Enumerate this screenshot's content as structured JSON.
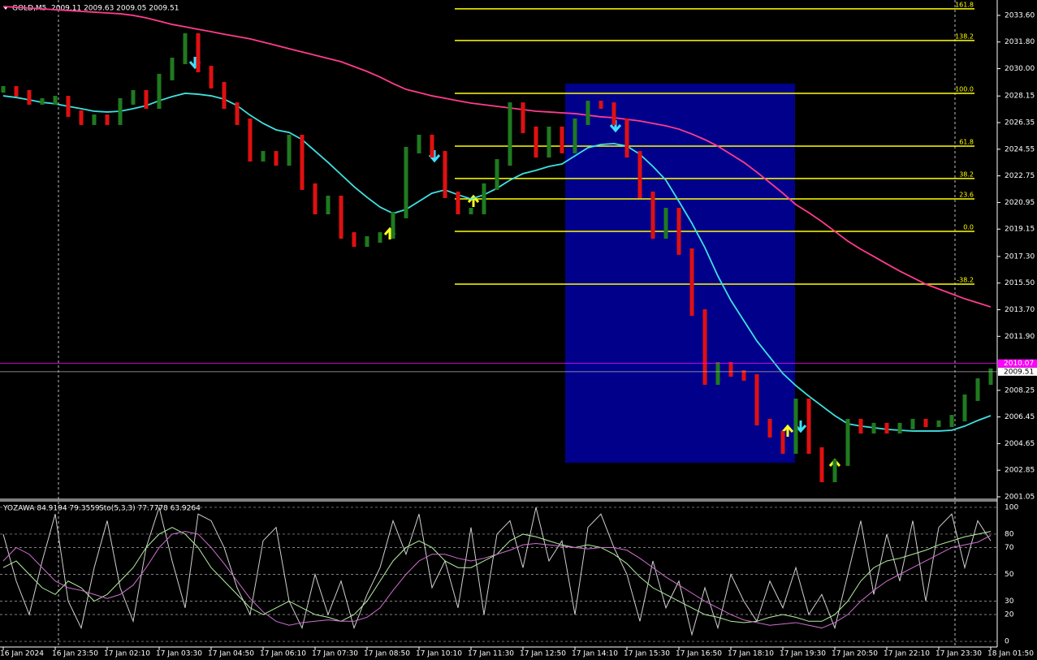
{
  "chart_data": [
    {
      "type": "price-bars",
      "title": "GOLD,M5",
      "subtitle": "2009.11 2009.63 2009.05 2009.51",
      "categories": [
        "16 Jan 2024",
        null,
        null,
        null,
        "16 Jan 23:50",
        null,
        null,
        null,
        "17 Jan 02:10",
        null,
        null,
        null,
        "17 Jan 03:30",
        null,
        null,
        null,
        "17 Jan 04:50",
        null,
        null,
        null,
        "17 Jan 06:10",
        null,
        null,
        null,
        "17 Jan 07:30",
        null,
        null,
        null,
        "17 Jan 08:50",
        null,
        null,
        null,
        "17 Jan 10:10",
        null,
        null,
        null,
        "17 Jan 11:30",
        null,
        null,
        null,
        "17 Jan 12:50",
        null,
        null,
        null,
        "17 Jan 14:10",
        null,
        null,
        null,
        "17 Jan 15:30",
        null,
        null,
        null,
        "17 Jan 16:50",
        null,
        null,
        null,
        "17 Jan 18:10",
        null,
        null,
        null,
        "17 Jan 19:30",
        null,
        null,
        null,
        "17 Jan 20:50",
        null,
        null,
        null,
        "17 Jan 22:10",
        null,
        null,
        null,
        "17 Jan 23:30",
        null,
        null,
        null,
        "18 Jan 01:50"
      ],
      "values": [
        2028.6,
        2028.33,
        2027.78,
        2027.78,
        2027.94,
        2026.96,
        2026.41,
        2026.68,
        2026.41,
        2027.78,
        2028.33,
        2027.5,
        2029.43,
        2030.52,
        2032.17,
        2029.97,
        2028.88,
        2027.5,
        2026.41,
        2023.94,
        2024.21,
        2023.66,
        2025.31,
        2022.02,
        2020.37,
        2021.19,
        2018.72,
        2018.17,
        2018.45,
        2018.72,
        2020.1,
        2024.49,
        2025.31,
        2024.21,
        2021.47,
        2020.37,
        2020.37,
        2022.02,
        2023.66,
        2027.5,
        2025.86,
        2024.21,
        2025.86,
        2024.49,
        2026.41,
        2027.61,
        2027.5,
        2026.41,
        2024.21,
        2021.47,
        2018.72,
        2020.37,
        2017.63,
        2013.51,
        2008.84,
        2009.94,
        2009.39,
        2009.12,
        2006.1,
        2005.28,
        2004.18,
        2007.47,
        2004.18,
        2002.26,
        2003.36,
        2006.1,
        2005.55,
        2005.83,
        2005.55,
        2005.83,
        2006.1,
        2005.99,
        2005.99,
        2006.37,
        2007.75,
        2008.84,
        2009.51
      ],
      "up_color": "#1f7a1f",
      "down_color": "#e01010",
      "overlays": [
        {
          "color": "#40e0e0",
          "values": [
            2028.16,
            2028.05,
            2027.89,
            2027.72,
            2027.62,
            2027.45,
            2027.29,
            2027.12,
            2027.07,
            2027.12,
            2027.29,
            2027.5,
            2027.83,
            2028.11,
            2028.33,
            2028.27,
            2028.16,
            2027.94,
            2027.5,
            2026.85,
            2026.3,
            2025.86,
            2025.69,
            2025.2,
            2024.43,
            2023.66,
            2022.84,
            2022.02,
            2021.3,
            2020.64,
            2020.21,
            2020.48,
            2021.03,
            2021.58,
            2021.8,
            2021.47,
            2021.19,
            2021.47,
            2021.91,
            2022.46,
            2022.9,
            2023.12,
            2023.39,
            2023.55,
            2024.1,
            2024.65,
            2024.87,
            2024.93,
            2024.76,
            2024.21,
            2023.39,
            2022.46,
            2021.03,
            2019.55,
            2017.9,
            2015.98,
            2014.33,
            2012.96,
            2011.59,
            2010.49,
            2009.39,
            2008.57,
            2007.86,
            2007.2,
            2006.54,
            2005.99,
            2005.83,
            2005.72,
            2005.61,
            2005.55,
            2005.5,
            2005.5,
            2005.5,
            2005.55,
            2005.83,
            2006.21,
            2006.54
          ]
        },
        {
          "color": "#ff3c8c",
          "values": [
            2034.2,
            2034.15,
            2034.09,
            2034.04,
            2033.98,
            2033.93,
            2033.87,
            2033.82,
            2033.76,
            2033.71,
            2033.6,
            2033.43,
            2033.21,
            2032.99,
            2032.83,
            2032.66,
            2032.5,
            2032.33,
            2032.17,
            2032.01,
            2031.79,
            2031.57,
            2031.35,
            2031.13,
            2030.91,
            2030.69,
            2030.47,
            2030.14,
            2029.81,
            2029.43,
            2028.99,
            2028.6,
            2028.38,
            2028.16,
            2028.0,
            2027.83,
            2027.67,
            2027.56,
            2027.45,
            2027.34,
            2027.23,
            2027.12,
            2027.07,
            2027.01,
            2026.96,
            2026.85,
            2026.74,
            2026.68,
            2026.57,
            2026.46,
            2026.3,
            2026.13,
            2025.91,
            2025.58,
            2025.2,
            2024.76,
            2024.21,
            2023.66,
            2023.0,
            2022.29,
            2021.58,
            2020.81,
            2020.26,
            2019.66,
            2019.0,
            2018.34,
            2017.79,
            2017.3,
            2016.8,
            2016.31,
            2015.87,
            2015.43,
            2015.1,
            2014.77,
            2014.44,
            2014.17,
            2013.89
          ]
        }
      ],
      "fib_color": "#ffff00",
      "fib_levels": [
        {
          "level": "161.8",
          "price": 2034.04
        },
        {
          "level": "138.2",
          "price": 2031.9
        },
        {
          "level": "100.0",
          "price": 2028.33
        },
        {
          "level": "61.8",
          "price": 2024.76
        },
        {
          "level": "38.2",
          "price": 2022.57
        },
        {
          "level": "23.6",
          "price": 2021.19
        },
        {
          "level": "0.0",
          "price": 2019.0
        },
        {
          "level": "-38.2",
          "price": 2015.43
        }
      ],
      "price_lines": [
        {
          "value": 2010.07,
          "label": "2010.07",
          "color": "#ff00ff"
        },
        {
          "value": 2009.51,
          "label": "2009.51",
          "color": "#b0b0b0"
        }
      ],
      "ylim": [
        2000.94,
        2034.64
      ],
      "yticks": [
        {
          "value": 2033.6,
          "label": "2033.60"
        },
        {
          "value": 2031.8,
          "label": "2031.80"
        },
        {
          "value": 2030.0,
          "label": "2030.00"
        },
        {
          "value": 2028.15,
          "label": "2028.15"
        },
        {
          "value": 2026.35,
          "label": "2026.35"
        },
        {
          "value": 2024.55,
          "label": "2024.55"
        },
        {
          "value": 2022.75,
          "label": "2022.75"
        },
        {
          "value": 2020.95,
          "label": "2020.95"
        },
        {
          "value": 2019.15,
          "label": "2019.15"
        },
        {
          "value": 2017.3,
          "label": "2017.30"
        },
        {
          "value": 2015.5,
          "label": "2015.50"
        },
        {
          "value": 2013.7,
          "label": "2013.70"
        },
        {
          "value": 2011.9,
          "label": "2011.90"
        },
        {
          "value": 2008.25,
          "label": "2008.25"
        },
        {
          "value": 2006.45,
          "label": "2006.45"
        },
        {
          "value": 2004.65,
          "label": "2004.65"
        },
        {
          "value": 2002.85,
          "label": "2002.85"
        },
        {
          "value": 2001.05,
          "label": "2001.05"
        }
      ]
    },
    {
      "type": "oscillator",
      "title": "YOZAWA 84.9194 79.3559",
      "subtitle": "Sto(5,3,3) 77.7778 63.9264",
      "series": [
        {
          "color": "#d0d0d0",
          "values": [
            80,
            45,
            20,
            60,
            95,
            30,
            10,
            55,
            90,
            40,
            15,
            70,
            100,
            60,
            25,
            95,
            90,
            70,
            40,
            20,
            75,
            85,
            30,
            10,
            50,
            20,
            45,
            10,
            35,
            55,
            90,
            65,
            95,
            40,
            60,
            25,
            85,
            20,
            80,
            90,
            55,
            100,
            60,
            75,
            20,
            85,
            95,
            70,
            50,
            15,
            60,
            25,
            45,
            5,
            40,
            10,
            50,
            30,
            15,
            45,
            25,
            55,
            20,
            35,
            10,
            50,
            90,
            35,
            80,
            45,
            90,
            30,
            85,
            95,
            55,
            90,
            75
          ]
        },
        {
          "color": "#b4f0a0",
          "values": [
            55,
            60,
            50,
            40,
            35,
            45,
            40,
            30,
            35,
            45,
            55,
            70,
            80,
            85,
            80,
            70,
            55,
            45,
            35,
            25,
            20,
            25,
            30,
            25,
            20,
            18,
            15,
            20,
            30,
            45,
            60,
            70,
            75,
            70,
            60,
            55,
            55,
            60,
            65,
            75,
            80,
            78,
            75,
            72,
            70,
            72,
            70,
            65,
            58,
            48,
            40,
            35,
            30,
            25,
            20,
            18,
            15,
            14,
            15,
            18,
            20,
            18,
            15,
            15,
            20,
            30,
            45,
            55,
            60,
            62,
            65,
            68,
            72,
            75,
            78,
            80,
            82
          ]
        },
        {
          "color": "#d070d0",
          "values": [
            60,
            70,
            65,
            55,
            45,
            40,
            38,
            35,
            32,
            35,
            42,
            55,
            70,
            80,
            82,
            80,
            70,
            58,
            45,
            32,
            22,
            15,
            12,
            14,
            15,
            16,
            15,
            15,
            18,
            25,
            38,
            50,
            60,
            65,
            65,
            62,
            60,
            62,
            65,
            68,
            72,
            73,
            72,
            71,
            70,
            69,
            70,
            70,
            68,
            62,
            55,
            48,
            42,
            36,
            30,
            25,
            20,
            16,
            14,
            12,
            13,
            14,
            12,
            10,
            14,
            20,
            30,
            38,
            45,
            50,
            55,
            60,
            65,
            70,
            72,
            74,
            79
          ]
        }
      ],
      "ylim": [
        -4.2,
        104.8
      ],
      "yticks": [
        0,
        20,
        30,
        50,
        70,
        80,
        100
      ],
      "grid": true
    }
  ]
}
